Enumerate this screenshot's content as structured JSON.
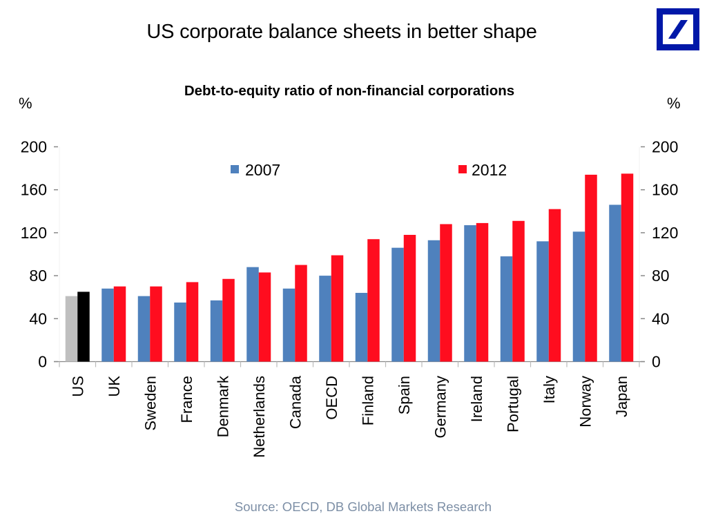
{
  "header": {
    "title": "US corporate balance sheets in better shape",
    "logo": "deutsche-bank-logo"
  },
  "footer": {
    "source": "Source: OECD, DB Global Markets Research"
  },
  "colors": {
    "series_2007": "#4f81bd",
    "series_2012": "#ff0d1f",
    "us_2007": "#bfbfbf",
    "us_2012": "#000000",
    "logo": "#0018a8",
    "source_text": "#7d8fa6"
  },
  "chart_data": {
    "type": "bar",
    "title": "Debt-to-equity ratio of non-financial corporations",
    "ylabel_left": "%",
    "ylabel_right": "%",
    "xlabel": "",
    "ylim": [
      0,
      200
    ],
    "yticks": [
      0,
      40,
      80,
      120,
      160,
      200
    ],
    "grid": false,
    "legend_position": "top",
    "categories": [
      "US",
      "UK",
      "Sweden",
      "France",
      "Denmark",
      "Netherlands",
      "Canada",
      "OECD",
      "Finland",
      "Spain",
      "Germany",
      "Ireland",
      "Portugal",
      "Italy",
      "Norway",
      "Japan"
    ],
    "series": [
      {
        "name": "2007",
        "values": [
          61,
          68,
          61,
          55,
          57,
          88,
          68,
          80,
          64,
          106,
          113,
          127,
          98,
          112,
          121,
          146
        ]
      },
      {
        "name": "2012",
        "values": [
          65,
          70,
          70,
          74,
          77,
          83,
          90,
          99,
          114,
          118,
          128,
          129,
          131,
          142,
          174,
          175
        ]
      }
    ]
  }
}
